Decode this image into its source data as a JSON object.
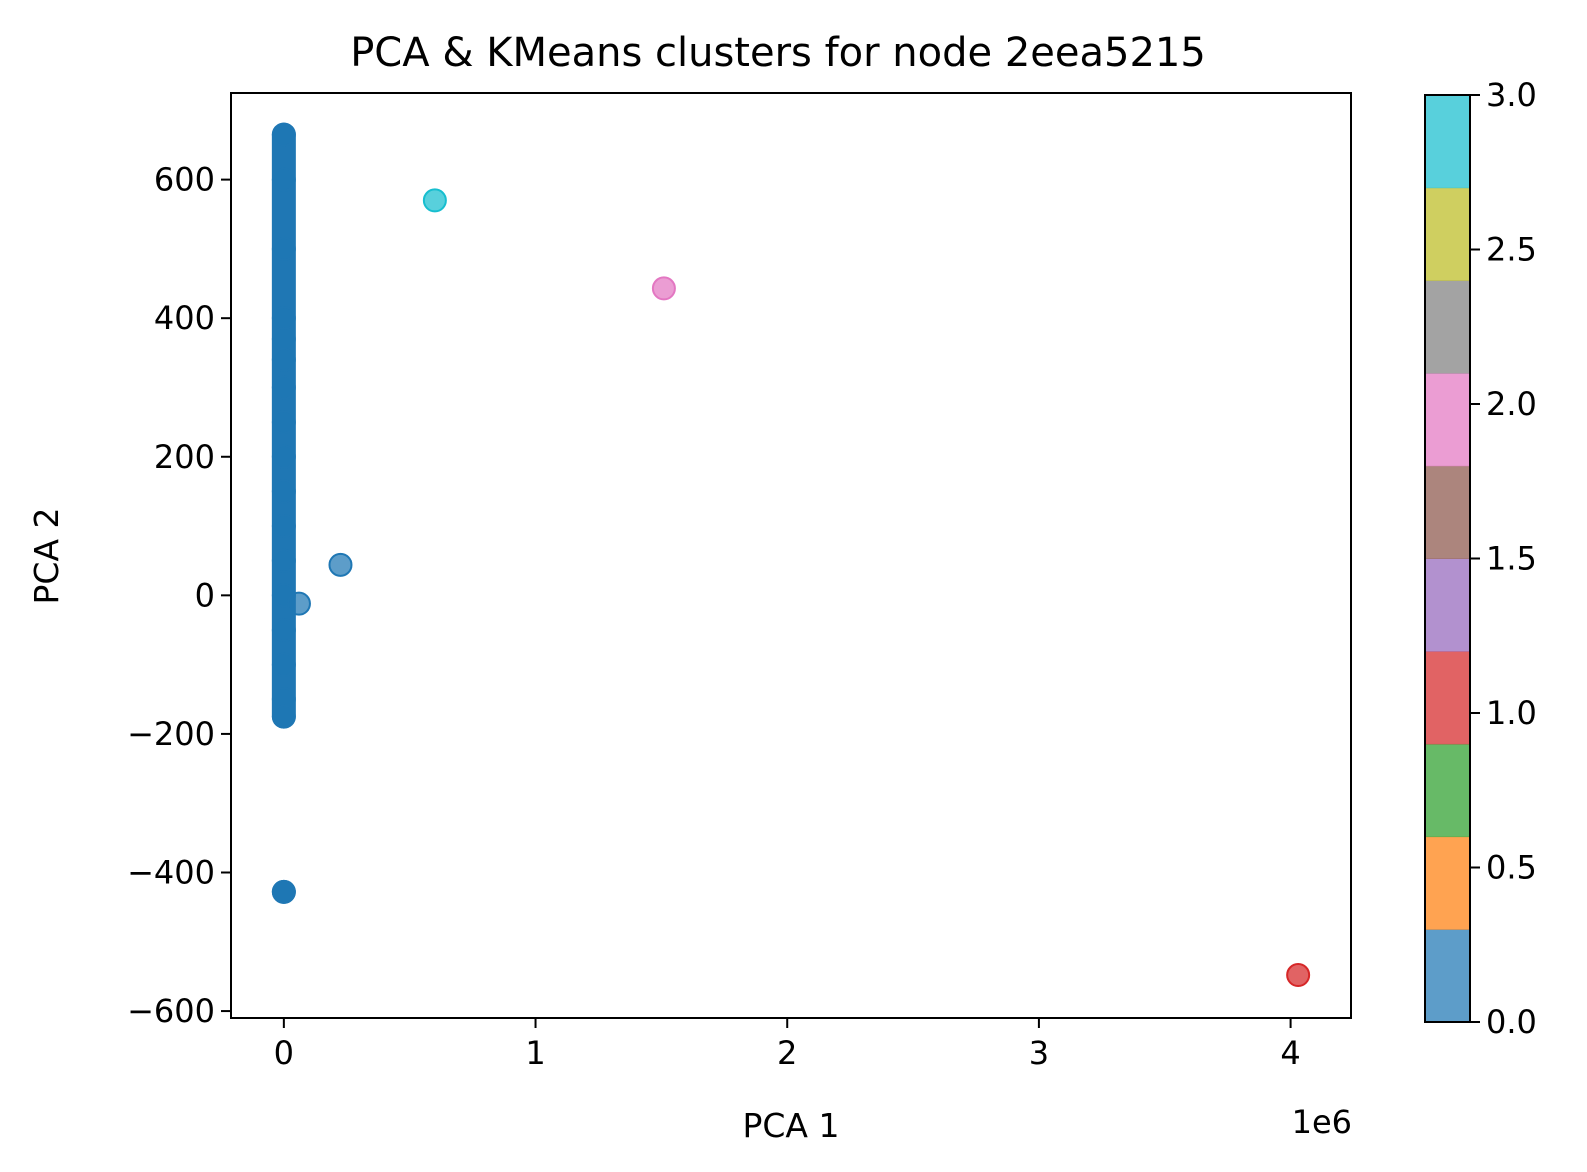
{
  "chart_data": {
    "type": "scatter",
    "title": "PCA & KMeans clusters for node 2eea5215",
    "xlabel": "PCA 1",
    "ylabel": "PCA 2",
    "x_offset_label": "1e6",
    "xlim": [
      -0.21,
      4.24
    ],
    "ylim": [
      -610,
      725
    ],
    "x_ticks": [
      0,
      1,
      2,
      3,
      4
    ],
    "x_tick_labels": [
      "0",
      "1",
      "2",
      "3",
      "4"
    ],
    "y_ticks": [
      -600,
      -400,
      -200,
      0,
      200,
      400,
      600
    ],
    "y_tick_labels": [
      "−600",
      "−400",
      "−200",
      "0",
      "200",
      "400",
      "600"
    ],
    "grid": false,
    "colorbar": {
      "range": [
        0,
        3
      ],
      "ticks": [
        0,
        0.5,
        1,
        1.5,
        2,
        2.5,
        3
      ],
      "tick_labels": [
        "0.0",
        "0.5",
        "1.0",
        "1.5",
        "2.0",
        "2.5",
        "3.0"
      ],
      "colors": [
        "#1f77b4",
        "#ff7f0e",
        "#2ca02c",
        "#d62728",
        "#9467bd",
        "#8c564b",
        "#e377c2",
        "#7f7f7f",
        "#bcbd22",
        "#17becf"
      ]
    },
    "dense_column": {
      "x": 0.0,
      "cluster": 0,
      "y_range": [
        -175,
        665
      ],
      "extra_y": [
        -428
      ]
    },
    "points": [
      {
        "x": 0.0,
        "y": 665,
        "cluster": 0
      },
      {
        "x": 0.0,
        "y": 600,
        "cluster": 0
      },
      {
        "x": 0.0,
        "y": 500,
        "cluster": 0
      },
      {
        "x": 0.0,
        "y": 400,
        "cluster": 0
      },
      {
        "x": 0.0,
        "y": 370,
        "cluster": 0
      },
      {
        "x": 0.0,
        "y": 340,
        "cluster": 0
      },
      {
        "x": 0.0,
        "y": 300,
        "cluster": 0
      },
      {
        "x": 0.0,
        "y": 250,
        "cluster": 0
      },
      {
        "x": 0.0,
        "y": 200,
        "cluster": 0
      },
      {
        "x": 0.0,
        "y": 150,
        "cluster": 0
      },
      {
        "x": 0.0,
        "y": 100,
        "cluster": 0
      },
      {
        "x": 0.0,
        "y": 50,
        "cluster": 0
      },
      {
        "x": 0.0,
        "y": 0,
        "cluster": 0
      },
      {
        "x": 0.0,
        "y": -50,
        "cluster": 0
      },
      {
        "x": 0.0,
        "y": -100,
        "cluster": 0
      },
      {
        "x": 0.0,
        "y": -150,
        "cluster": 0
      },
      {
        "x": 0.0,
        "y": -175,
        "cluster": 0
      },
      {
        "x": 0.0,
        "y": -428,
        "cluster": 0
      },
      {
        "x": 0.06,
        "y": -12,
        "cluster": 0
      },
      {
        "x": 0.225,
        "y": 44,
        "cluster": 0
      },
      {
        "x": 0.6,
        "y": 570,
        "cluster": 3
      },
      {
        "x": 1.51,
        "y": 443,
        "cluster": 2
      },
      {
        "x": 4.03,
        "y": -548,
        "cluster": 1
      }
    ]
  }
}
